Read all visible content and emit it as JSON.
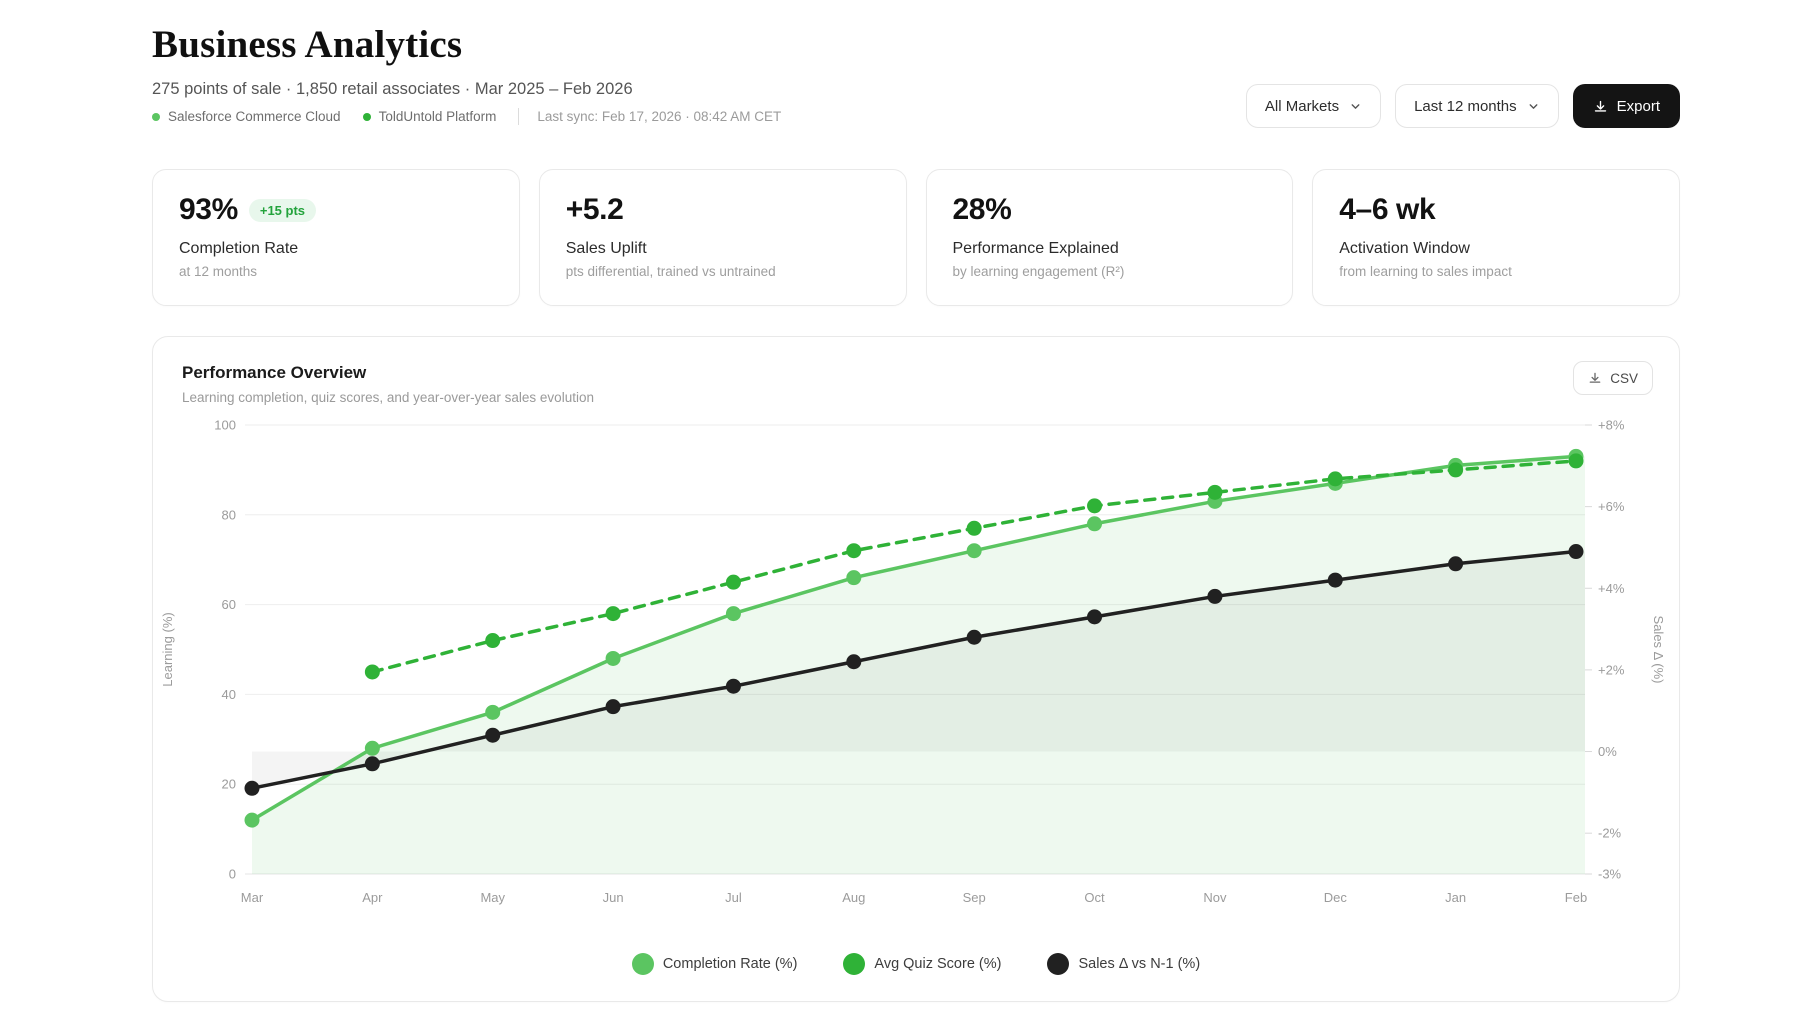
{
  "header": {
    "title": "Business Analytics",
    "subtitle": "275 points of sale · 1,850 retail associates · Mar 2025 – Feb 2026",
    "sources": [
      {
        "label": "Salesforce Commerce Cloud",
        "color": "#5bc561"
      },
      {
        "label": "ToldUntold Platform",
        "color": "#2fb237"
      }
    ],
    "last_sync": "Last sync: Feb 17, 2026 · 08:42 AM CET",
    "market_filter": "All Markets",
    "period_filter": "Last 12 months",
    "export_label": "Export"
  },
  "kpis": [
    {
      "value": "93%",
      "badge": "+15 pts",
      "label": "Completion Rate",
      "sublabel": "at 12 months"
    },
    {
      "value": "+5.2",
      "label": "Sales Uplift",
      "sublabel": "pts differential, trained vs untrained"
    },
    {
      "value": "28%",
      "label": "Performance Explained",
      "sublabel": "by learning engagement (R²)"
    },
    {
      "value": "4–6 wk",
      "label": "Activation Window",
      "sublabel": "from learning to sales impact"
    }
  ],
  "chart_panel": {
    "title": "Performance Overview",
    "subtitle": "Learning completion, quiz scores, and year-over-year sales evolution",
    "csv_label": "CSV"
  },
  "chart_data": {
    "type": "line",
    "categories": [
      "Mar",
      "Apr",
      "May",
      "Jun",
      "Jul",
      "Aug",
      "Sep",
      "Oct",
      "Nov",
      "Dec",
      "Jan",
      "Feb"
    ],
    "series": [
      {
        "name": "Completion Rate (%)",
        "axis": "left",
        "color": "#5bc561",
        "style": "solid",
        "area": true,
        "area_fill": "rgba(91,197,97,0.10)",
        "values": [
          12,
          28,
          36,
          48,
          58,
          66,
          72,
          78,
          83,
          87,
          91,
          93
        ]
      },
      {
        "name": "Avg Quiz Score (%)",
        "axis": "left",
        "color": "#2fb237",
        "style": "dashed",
        "area": false,
        "values": [
          null,
          45,
          52,
          58,
          65,
          72,
          77,
          82,
          85,
          88,
          90,
          92
        ]
      },
      {
        "name": "Sales Δ vs N-1 (%)",
        "axis": "right",
        "color": "#212121",
        "style": "solid",
        "area": true,
        "area_fill": "rgba(30,30,30,0.05)",
        "area_baseline": 0,
        "values": [
          -0.9,
          -0.3,
          0.4,
          1.1,
          1.6,
          2.2,
          2.8,
          3.3,
          3.8,
          4.2,
          4.6,
          4.9
        ]
      }
    ],
    "left_axis": {
      "label": "Learning (%)",
      "min": 0,
      "max": 100,
      "ticks": [
        0,
        20,
        40,
        60,
        80,
        100
      ]
    },
    "right_axis": {
      "label": "Sales Δ (%)",
      "min": -3,
      "max": 8,
      "ticks": [
        8,
        6,
        4,
        2,
        0,
        -2,
        -3
      ],
      "tick_suffix": "%"
    },
    "grid": true,
    "legend_position": "bottom"
  }
}
